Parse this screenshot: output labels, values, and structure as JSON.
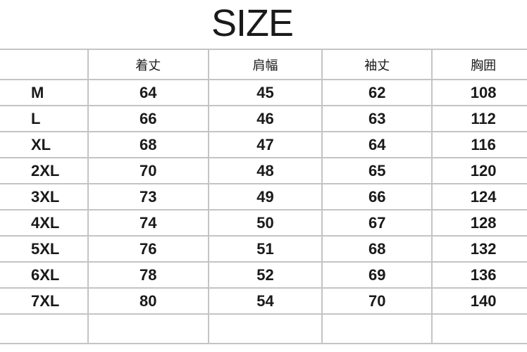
{
  "title": "SIZE",
  "headers": [
    "",
    "着丈",
    "肩幅",
    "袖丈",
    "胸囲"
  ],
  "rows": [
    [
      "M",
      "64",
      "45",
      "62",
      "108"
    ],
    [
      "L",
      "66",
      "46",
      "63",
      "112"
    ],
    [
      "XL",
      "68",
      "47",
      "64",
      "116"
    ],
    [
      "2XL",
      "70",
      "48",
      "65",
      "120"
    ],
    [
      "3XL",
      "73",
      "49",
      "66",
      "124"
    ],
    [
      "4XL",
      "74",
      "50",
      "67",
      "128"
    ],
    [
      "5XL",
      "76",
      "51",
      "68",
      "132"
    ],
    [
      "6XL",
      "78",
      "52",
      "69",
      "136"
    ],
    [
      "7XL",
      "80",
      "54",
      "70",
      "140"
    ]
  ]
}
